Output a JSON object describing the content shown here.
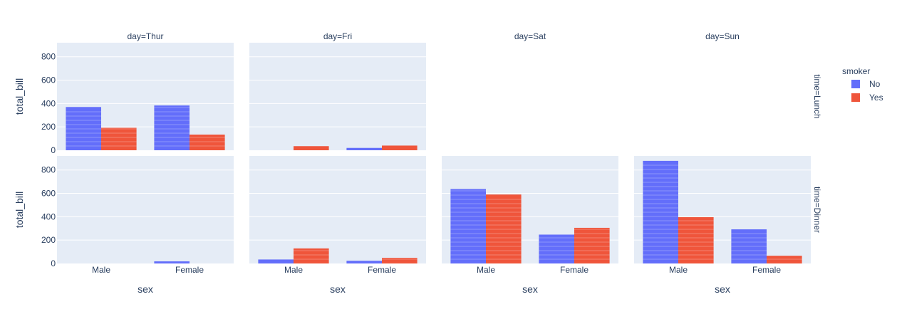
{
  "chart_data": {
    "type": "bar",
    "barmode": "group",
    "x_title": "sex",
    "y_title": "total_bill",
    "categories": [
      "Male",
      "Female"
    ],
    "ylim": [
      0,
      920
    ],
    "yticks": [
      0,
      200,
      400,
      600,
      800
    ],
    "columns": [
      "day=Thur",
      "day=Fri",
      "day=Sat",
      "day=Sun"
    ],
    "rows": [
      "time=Lunch",
      "time=Dinner"
    ],
    "legend": {
      "title": "smoker",
      "position": "top-right",
      "items": [
        {
          "name": "No",
          "color": "#636efa"
        },
        {
          "name": "Yes",
          "color": "#ef553b"
        }
      ]
    },
    "panels": [
      {
        "column": "day=Thur",
        "row": "time=Lunch",
        "values": {
          "No": [
            370,
            383
          ],
          "Yes": [
            192,
            134
          ]
        }
      },
      {
        "column": "day=Fri",
        "row": "time=Lunch",
        "values": {
          "No": [
            0,
            20
          ],
          "Yes": [
            35,
            40
          ]
        }
      },
      {
        "column": "day=Sat",
        "row": "time=Lunch",
        "values": {
          "No": [
            0,
            0
          ],
          "Yes": [
            0,
            0
          ]
        }
      },
      {
        "column": "day=Sun",
        "row": "time=Lunch",
        "values": {
          "No": [
            0,
            0
          ],
          "Yes": [
            0,
            0
          ]
        }
      },
      {
        "column": "day=Thur",
        "row": "time=Dinner",
        "values": {
          "No": [
            0,
            18
          ],
          "Yes": [
            0,
            0
          ]
        }
      },
      {
        "column": "day=Fri",
        "row": "time=Dinner",
        "values": {
          "No": [
            34,
            23
          ],
          "Yes": [
            129,
            48
          ]
        }
      },
      {
        "column": "day=Sat",
        "row": "time=Dinner",
        "values": {
          "No": [
            637,
            247
          ],
          "Yes": [
            590,
            305
          ]
        }
      },
      {
        "column": "day=Sun",
        "row": "time=Dinner",
        "values": {
          "No": [
            878,
            292
          ],
          "Yes": [
            396,
            66
          ]
        }
      }
    ],
    "grid": true
  }
}
